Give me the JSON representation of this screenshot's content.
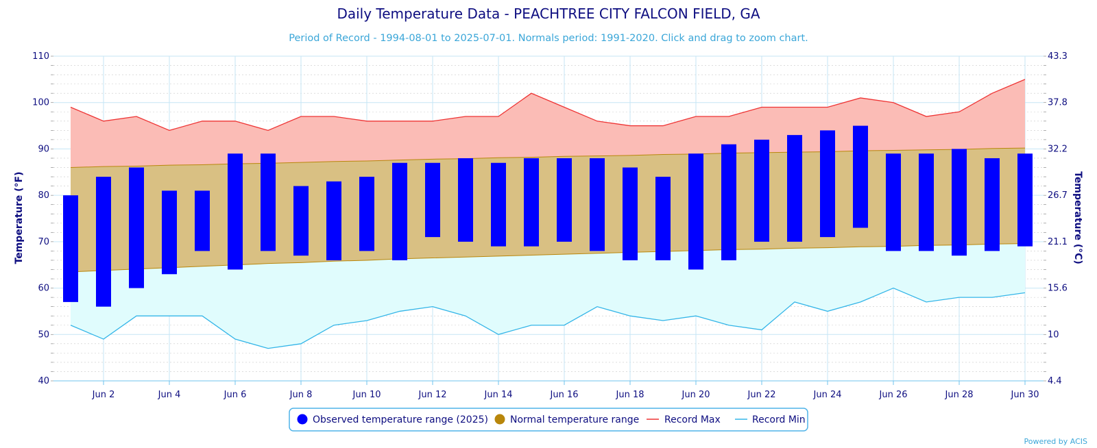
{
  "header": {
    "title": "Daily Temperature Data - PEACHTREE CITY FALCON FIELD, GA",
    "subtitle": "Period of Record - 1994-08-01 to 2025-07-01. Normals period: 1991-2020. Click and drag to zoom chart."
  },
  "credit": "Powered by ACIS",
  "legend": {
    "observed": "Observed temperature range (2025)",
    "normal": "Normal temperature range",
    "record_max": "Record Max",
    "record_min": "Record Min"
  },
  "colors": {
    "observed": "#0000ff",
    "normal_fill": "#d9c083",
    "normal_line": "#b8860b",
    "record_max_line": "#ee3333",
    "record_max_fill": "#fbbcb6",
    "record_min_line": "#33b5e8",
    "record_min_fill": "#e0fcfd",
    "text": "#0d0d80"
  },
  "chart_data": {
    "type": "bar",
    "subtype": "floating-range bars with record and normal bands",
    "title": "Daily Temperature Data - PEACHTREE CITY FALCON FIELD, GA",
    "ylabel": "Temperature (°F)",
    "ylabel_right": "Temperature (°C)",
    "ylim": [
      40,
      110
    ],
    "yticks": [
      40,
      50,
      60,
      70,
      80,
      90,
      100,
      110
    ],
    "yticks_right": [
      "4.4",
      "10",
      "15.6",
      "21.1",
      "26.7",
      "32.2",
      "37.8",
      "43.3"
    ],
    "xtick_labels": [
      "Jun 2",
      "Jun 4",
      "Jun 6",
      "Jun 8",
      "Jun 10",
      "Jun 12",
      "Jun 14",
      "Jun 16",
      "Jun 18",
      "Jun 20",
      "Jun 22",
      "Jun 24",
      "Jun 26",
      "Jun 28",
      "Jun 30"
    ],
    "xtick_days": [
      2,
      4,
      6,
      8,
      10,
      12,
      14,
      16,
      18,
      20,
      22,
      24,
      26,
      28,
      30
    ],
    "days": [
      1,
      2,
      3,
      4,
      5,
      6,
      7,
      8,
      9,
      10,
      11,
      12,
      13,
      14,
      15,
      16,
      17,
      18,
      19,
      20,
      21,
      22,
      23,
      24,
      25,
      26,
      27,
      28,
      29,
      30
    ],
    "grid": true,
    "legend_position": "bottom-center",
    "series": [
      {
        "name": "Observed temperature range (2025)",
        "high": [
          80,
          84,
          86,
          81,
          81,
          89,
          89,
          82,
          83,
          84,
          87,
          87,
          88,
          87,
          88,
          88,
          88,
          86,
          84,
          89,
          91,
          92,
          93,
          94,
          95,
          89,
          89,
          90,
          88,
          89
        ],
        "low": [
          57,
          56,
          60,
          63,
          68,
          64,
          68,
          67,
          66,
          68,
          66,
          71,
          70,
          69,
          69,
          70,
          68,
          66,
          66,
          64,
          66,
          70,
          70,
          71,
          73,
          68,
          68,
          67,
          68,
          69
        ]
      },
      {
        "name": "Normal temperature range",
        "high": [
          86,
          86.2,
          86.3,
          86.5,
          86.6,
          86.8,
          86.9,
          87.1,
          87.3,
          87.4,
          87.6,
          87.8,
          87.9,
          88.1,
          88.2,
          88.4,
          88.5,
          88.6,
          88.8,
          88.9,
          89.1,
          89.2,
          89.3,
          89.4,
          89.6,
          89.7,
          89.8,
          89.9,
          90.1,
          90.2
        ],
        "low": [
          63.5,
          63.8,
          64.1,
          64.4,
          64.7,
          65.0,
          65.3,
          65.5,
          65.8,
          66.0,
          66.3,
          66.5,
          66.7,
          66.9,
          67.1,
          67.3,
          67.5,
          67.7,
          67.9,
          68.1,
          68.3,
          68.4,
          68.6,
          68.7,
          68.9,
          69.0,
          69.2,
          69.3,
          69.5,
          69.6
        ]
      },
      {
        "name": "Record Max",
        "values": [
          99,
          96,
          97,
          94,
          96,
          96,
          94,
          97,
          97,
          96,
          96,
          96,
          97,
          97,
          102,
          99,
          96,
          95,
          95,
          97,
          97,
          99,
          99,
          99,
          101,
          100,
          97,
          98,
          102,
          105
        ]
      },
      {
        "name": "Record Min",
        "values": [
          52,
          49,
          54,
          54,
          54,
          49,
          47,
          48,
          52,
          53,
          55,
          56,
          54,
          50,
          52,
          52,
          56,
          54,
          53,
          54,
          52,
          51,
          57,
          55,
          57,
          60,
          57,
          58,
          58,
          59
        ]
      }
    ]
  }
}
